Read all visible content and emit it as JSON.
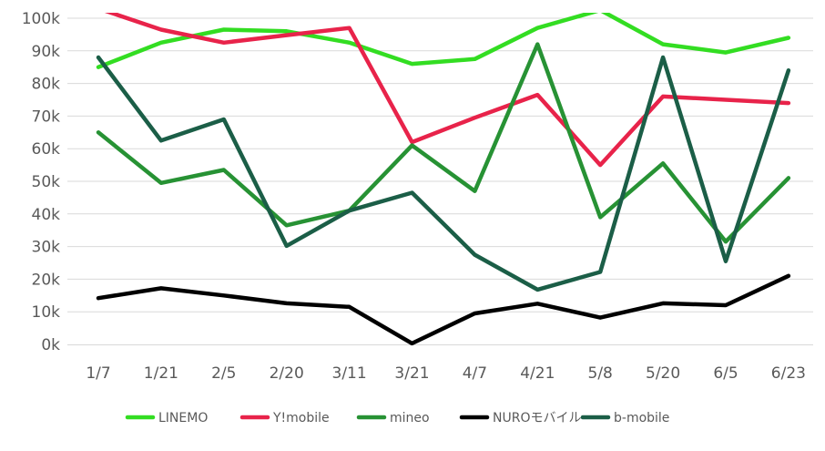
{
  "chart_data": {
    "type": "line",
    "categories": [
      "1/7",
      "1/21",
      "2/5",
      "2/20",
      "3/11",
      "3/21",
      "4/7",
      "4/21",
      "5/8",
      "5/20",
      "6/5",
      "6/23"
    ],
    "y_ticks": [
      "0k",
      "10k",
      "20k",
      "30k",
      "40k",
      "50k",
      "60k",
      "70k",
      "80k",
      "90k",
      "100k"
    ],
    "ylim": [
      0,
      100000
    ],
    "grid": true,
    "legend_position": "bottom",
    "series": [
      {
        "name": "LINEMO",
        "color": "#33dd22",
        "values": [
          85000,
          92500,
          96500,
          96000,
          92500,
          86000,
          87500,
          97000,
          102500,
          92000,
          89500,
          94000
        ]
      },
      {
        "name": "Y!mobile",
        "color": "#e8234a",
        "values": [
          103000,
          96500,
          92500,
          94800,
          97000,
          62000,
          69500,
          76500,
          55000,
          76000,
          75000,
          74000
        ]
      },
      {
        "name": "mineo",
        "color": "#279234",
        "values": [
          65000,
          49500,
          53500,
          36500,
          41000,
          61000,
          47000,
          92000,
          39000,
          55500,
          31500,
          51000
        ]
      },
      {
        "name": "NUROモバイル",
        "color": "#000000",
        "values": [
          14200,
          17200,
          15000,
          12600,
          11500,
          300,
          9500,
          12500,
          8200,
          12600,
          12000,
          21000
        ]
      },
      {
        "name": "b-mobile",
        "color": "#1b5e47",
        "values": [
          88000,
          62500,
          69000,
          30200,
          41000,
          46500,
          27500,
          16800,
          22200,
          88000,
          25500,
          84000
        ]
      }
    ]
  }
}
